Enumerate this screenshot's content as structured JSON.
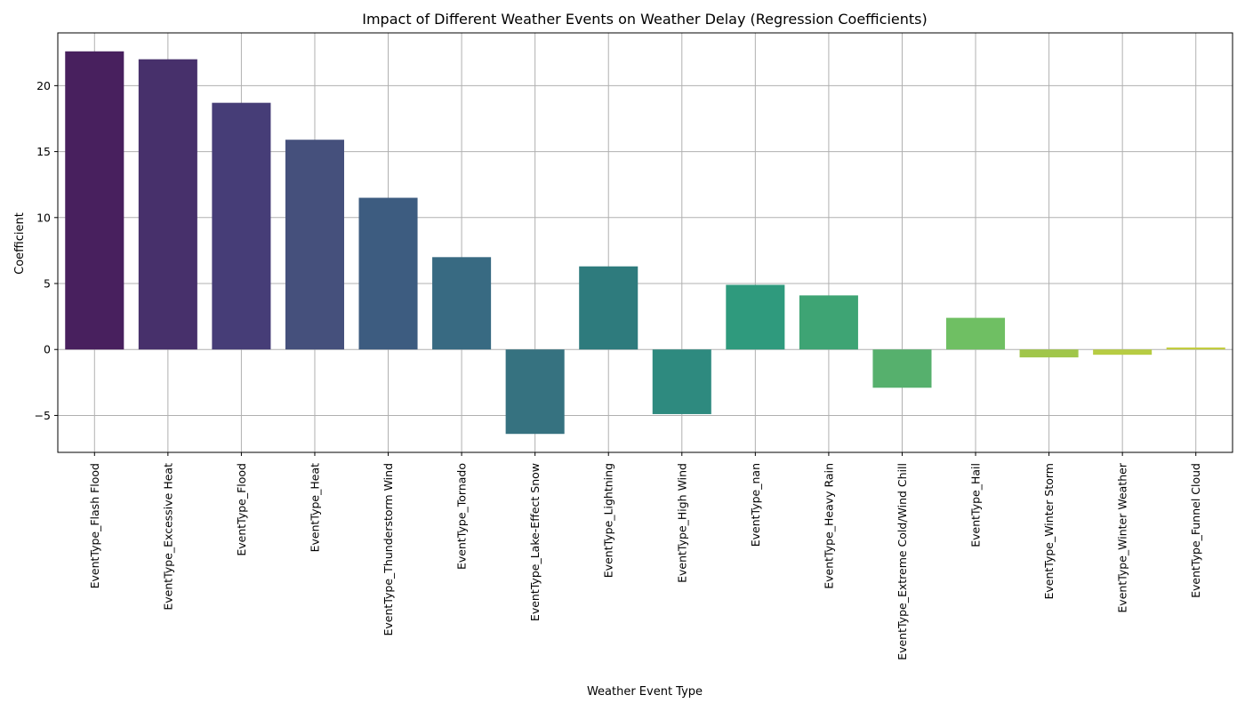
{
  "chart_data": {
    "type": "bar",
    "title": "Impact of Different Weather Events on Weather Delay (Regression Coefficients)",
    "xlabel": "Weather Event Type",
    "ylabel": "Coefficient",
    "ylim": [
      -7.8,
      24
    ],
    "yticks": [
      -5,
      0,
      5,
      10,
      15,
      20
    ],
    "ytick_labels": [
      "−5",
      "0",
      "5",
      "10",
      "15",
      "20"
    ],
    "grid": true,
    "categories": [
      "EventType_Flash Flood",
      "EventType_Excessive Heat",
      "EventType_Flood",
      "EventType_Heat",
      "EventType_Thunderstorm Wind",
      "EventType_Tornado",
      "EventType_Lake-Effect Snow",
      "EventType_Lightning",
      "EventType_High Wind",
      "EventType_nan",
      "EventType_Heavy Rain",
      "EventType_Extreme Cold/Wind Chill",
      "EventType_Hail",
      "EventType_Winter Storm",
      "EventType_Winter Weather",
      "EventType_Funnel Cloud"
    ],
    "values": [
      22.6,
      22.0,
      18.7,
      15.9,
      11.5,
      7.0,
      -6.4,
      6.3,
      -4.9,
      4.9,
      4.1,
      -2.9,
      2.4,
      -0.6,
      -0.4,
      0.15
    ],
    "colors": [
      "#48205e",
      "#47306b",
      "#463d77",
      "#45507c",
      "#3d5c80",
      "#386a82",
      "#367280",
      "#2e7b7d",
      "#2e8a7f",
      "#2f9a7d",
      "#3ea474",
      "#56b06d",
      "#6fbf63",
      "#a0c64a",
      "#b7cc43",
      "#c2cc40"
    ]
  }
}
